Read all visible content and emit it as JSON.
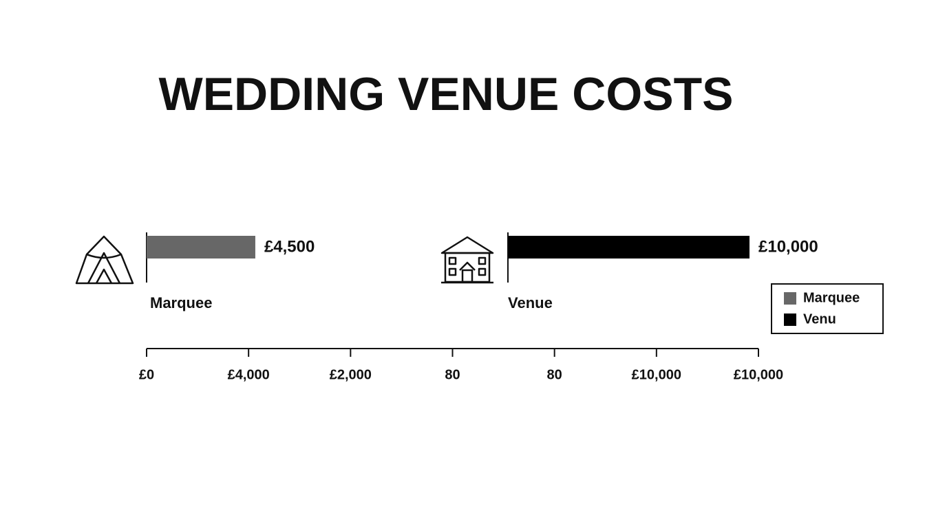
{
  "chart_data": {
    "type": "bar",
    "title": "WEDDING VENUE COSTS",
    "categories": [
      "Marquee",
      "Venue"
    ],
    "values": [
      4500,
      10000
    ],
    "value_labels": [
      "£4,500",
      "£10,000"
    ],
    "colors": [
      "#676767",
      "#000000"
    ],
    "legend": [
      "Marquee",
      "Venu"
    ],
    "axis_labels": [
      "£0",
      "£4,000",
      "£2,000",
      "80",
      "80",
      "£10,000",
      "£10,000"
    ]
  }
}
